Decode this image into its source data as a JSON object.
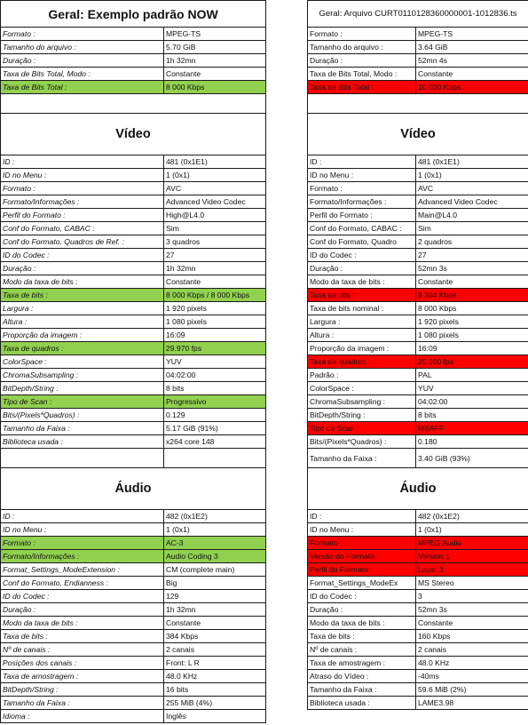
{
  "colors": {
    "highlight_green": "#92d050",
    "highlight_red": "#ff0000"
  },
  "left": {
    "title": "Geral: Exemplo padrão NOW",
    "geral": [
      {
        "k": "Formato :",
        "v": "MPEG-TS"
      },
      {
        "k": "Tamanho do arquivo :",
        "v": "5.70 GiB"
      },
      {
        "k": "Duração :",
        "v": "1h 32mn"
      },
      {
        "k": "Taxa de Bits Total, Modo :",
        "v": "Constante"
      },
      {
        "k": "Taxa de Bits Total :",
        "v": "8 000 Kbps",
        "hl": "g"
      }
    ],
    "video_title": "Vídeo",
    "video": [
      {
        "k": "ID :",
        "v": "481 (0x1E1)"
      },
      {
        "k": "ID no Menu :",
        "v": "1 (0x1)"
      },
      {
        "k": "Formato :",
        "v": "AVC"
      },
      {
        "k": "Formato/Informações :",
        "v": "Advanced Video Codec"
      },
      {
        "k": "Perfil do Formato :",
        "v": "High@L4.0"
      },
      {
        "k": "Conf do Formato, CABAC :",
        "v": "Sim"
      },
      {
        "k": "Conf do Formato, Quadros de Ref. :",
        "v": "3 quadros"
      },
      {
        "k": "ID do Codec :",
        "v": "27"
      },
      {
        "k": "Duração :",
        "v": "1h 32mn"
      },
      {
        "k": "Modo da taxa de bits :",
        "v": "Constante"
      },
      {
        "k": "Taxa de bits :",
        "v": "8 000 Kbps / 8 000 Kbps",
        "hl": "g"
      },
      {
        "k": "Largura :",
        "v": "1 920 pixels"
      },
      {
        "k": "Altura :",
        "v": "1 080 pixels"
      },
      {
        "k": "Proporção da imagem :",
        "v": "16:09"
      },
      {
        "k": "Taxa de quadros :",
        "v": "29.970 fps",
        "hl": "g"
      },
      {
        "k": "ColorSpace :",
        "v": "YUV"
      },
      {
        "k": "ChromaSubsampling :",
        "v": "04:02:00"
      },
      {
        "k": "BitDepth/String :",
        "v": "8 bits"
      },
      {
        "k": "Tipo de Scan :",
        "v": "Progressivo",
        "hl": "g"
      },
      {
        "k": "Bits/(Pixels*Quadros) :",
        "v": "0.129"
      },
      {
        "k": "Tamanho da Faixa :",
        "v": "5.17 GiB (91%)"
      },
      {
        "k": "Biblioteca usada :",
        "v": "x264 core 148"
      },
      {
        "k": "",
        "v": "",
        "big": true
      }
    ],
    "audio_title": "Áudio",
    "audio": [
      {
        "k": "ID :",
        "v": "482 (0x1E2)"
      },
      {
        "k": "ID no Menu :",
        "v": "1 (0x1)"
      },
      {
        "k": "Formato :",
        "v": "AC-3",
        "hl": "g"
      },
      {
        "k": "Formato/Informações :",
        "v": "Audio Coding 3",
        "hl": "g"
      },
      {
        "k": "Format_Settings_ModeExtension :",
        "v": "CM (complete main)"
      },
      {
        "k": "Conf do Formato, Endianness :",
        "v": "Big"
      },
      {
        "k": "ID do Codec :",
        "v": "129"
      },
      {
        "k": "Duração :",
        "v": "1h 32mn"
      },
      {
        "k": "Modo da taxa de bits :",
        "v": "Constante"
      },
      {
        "k": "Taxa de bits :",
        "v": "384 Kbps"
      },
      {
        "k": "Nº de canais :",
        "v": "2 canais"
      },
      {
        "k": "Posições dos canais :",
        "v": "Front: L R"
      },
      {
        "k": "Taxa de amostragem :",
        "v": "48.0 KHz"
      },
      {
        "k": "BitDepth/String :",
        "v": "16 bits"
      },
      {
        "k": "Tamanho da Faixa :",
        "v": "255 MiB (4%)"
      },
      {
        "k": "Idioma :",
        "v": "Inglês"
      }
    ]
  },
  "right": {
    "title": "Geral: Arquivo CURT0110128360000001-1012836.ts",
    "geral": [
      {
        "k": "Formato :",
        "v": "MPEG-TS"
      },
      {
        "k": "Tamanho do arquivo :",
        "v": "3.64 GiB"
      },
      {
        "k": "Duração :",
        "v": "52mn 4s"
      },
      {
        "k": "Taxa de Bits Total, Modo :",
        "v": "Constante"
      },
      {
        "k": "Taxa de Bits Total :",
        "v": "10 000 Kbps",
        "hl": "r"
      }
    ],
    "video_title": "Vídeo",
    "video": [
      {
        "k": "ID :",
        "v": "481 (0x1E1)"
      },
      {
        "k": "ID no Menu :",
        "v": "1 (0x1)"
      },
      {
        "k": "Formato :",
        "v": "AVC"
      },
      {
        "k": "Formato/Informações :",
        "v": "Advanced Video Codec"
      },
      {
        "k": "Perfil do Formato :",
        "v": "Main@L4.0"
      },
      {
        "k": "Conf do Formato, CABAC :",
        "v": "Sim"
      },
      {
        "k": "Conf do Formato, Quadro",
        "v": "2 quadros"
      },
      {
        "k": "ID do Codec :",
        "v": "27"
      },
      {
        "k": "Duração :",
        "v": "52mn 3s"
      },
      {
        "k": "Modo da taxa de bits :",
        "v": "Constante"
      },
      {
        "k": "Taxa de bits :",
        "v": "9 344 Kbps",
        "hl": "r"
      },
      {
        "k": "Taxa de bits nominal :",
        "v": "8 000 Kbps"
      },
      {
        "k": "Largura :",
        "v": "1 920 pixels"
      },
      {
        "k": "Altura :",
        "v": "1 080 pixels"
      },
      {
        "k": "Proporção da imagem :",
        "v": "16:09"
      },
      {
        "k": "Taxa de quadros :",
        "v": "25.000 fps",
        "hl": "r"
      },
      {
        "k": "Padrão :",
        "v": "PAL"
      },
      {
        "k": "ColorSpace :",
        "v": "YUV"
      },
      {
        "k": "ChromaSubsampling :",
        "v": "04:02:00"
      },
      {
        "k": "BitDepth/String :",
        "v": "8 bits"
      },
      {
        "k": "Tipo de Scan :",
        "v": "MBAFF",
        "hl": "r"
      },
      {
        "k": "Bits/(Pixels*Quadros) :",
        "v": "0.180"
      },
      {
        "k": "Tamanho da Faixa :",
        "v": "3.40 GiB (93%)",
        "big": true
      }
    ],
    "audio_title": "Áudio",
    "audio": [
      {
        "k": "ID :",
        "v": "482 (0x1E2)"
      },
      {
        "k": "ID no Menu :",
        "v": "1 (0x1)"
      },
      {
        "k": "Formato :",
        "v": "MPEG Audio",
        "hl": "r"
      },
      {
        "k": "Versão do Formato :",
        "v": "Version 1",
        "hl": "r"
      },
      {
        "k": "Perfil do Formato :",
        "v": "Layer 3",
        "hl": "r"
      },
      {
        "k": "Format_Settings_ModeEx",
        "v": "MS Stereo"
      },
      {
        "k": "ID do Codec :",
        "v": "3"
      },
      {
        "k": "Duração :",
        "v": "52mn 3s"
      },
      {
        "k": "Modo da taxa de bits :",
        "v": "Constante"
      },
      {
        "k": "Taxa de bits :",
        "v": "160 Kbps"
      },
      {
        "k": "Nº de canais :",
        "v": "2 canais"
      },
      {
        "k": "Taxa de amostragem :",
        "v": "48.0 KHz"
      },
      {
        "k": "Atraso do Vídeo :",
        "v": "-40ms"
      },
      {
        "k": "Tamanho da Faixa :",
        "v": "59.6 MiB (2%)"
      },
      {
        "k": "Biblioteca usada :",
        "v": "LAME3.98"
      }
    ]
  }
}
